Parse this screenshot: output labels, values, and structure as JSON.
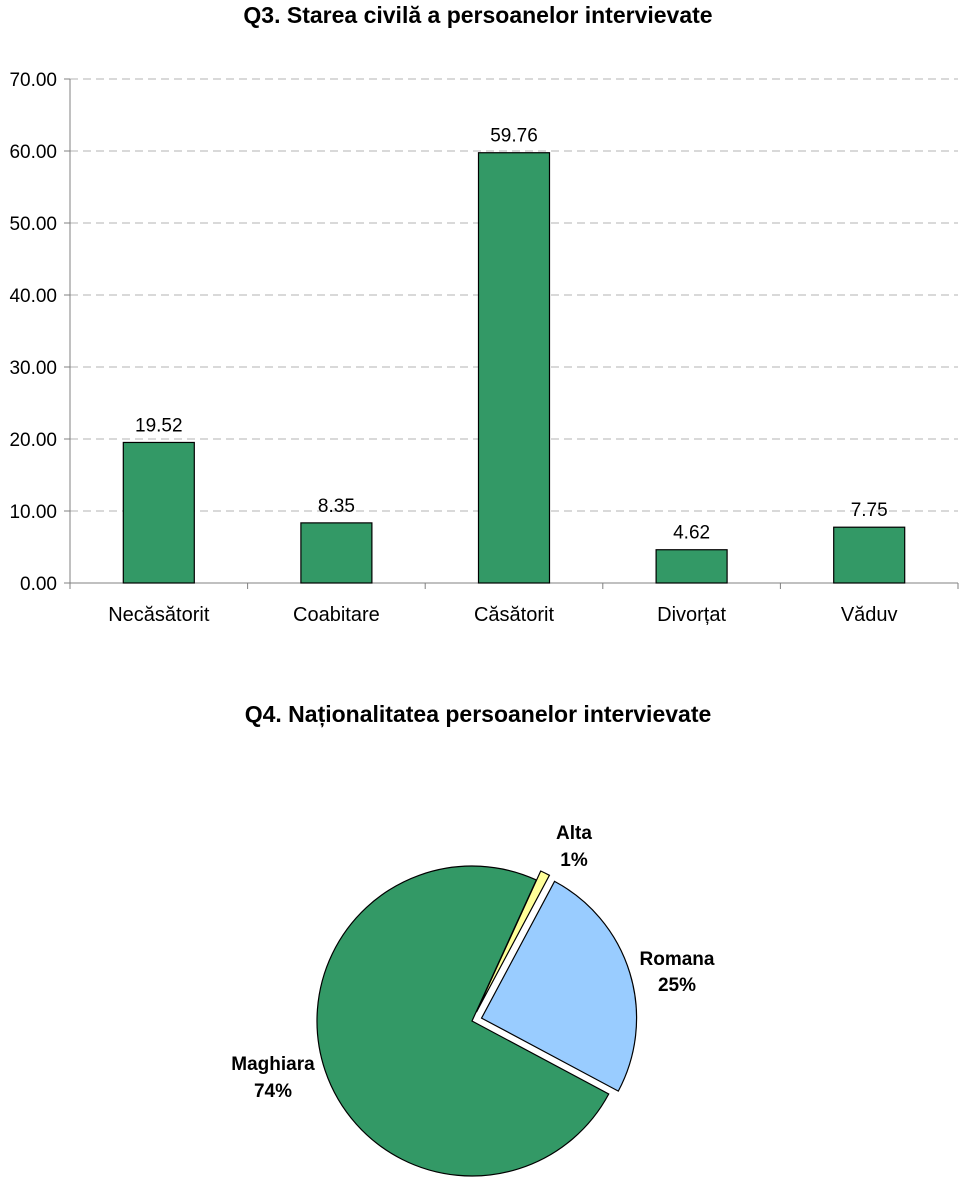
{
  "chart_data": [
    {
      "type": "bar",
      "title": "Q3. Starea civilă a persoanelor intervievate",
      "categories": [
        "Necăsătorit",
        "Coabitare",
        "Căsătorit",
        "Divorțat",
        "Văduv"
      ],
      "values": [
        19.52,
        8.35,
        59.76,
        4.62,
        7.75
      ],
      "value_labels": [
        "19.52",
        "8.35",
        "59.76",
        "4.62",
        "7.75"
      ],
      "ylim": [
        0,
        70
      ],
      "yticks": [
        "0.00",
        "10.00",
        "20.00",
        "30.00",
        "40.00",
        "50.00",
        "60.00",
        "70.00"
      ],
      "ytick_values": [
        0,
        10,
        20,
        30,
        40,
        50,
        60,
        70
      ],
      "grid": true,
      "bar_color": "#339966"
    },
    {
      "type": "pie",
      "title": "Q4. Naționalitatea persoanelor intervievate",
      "slices": [
        {
          "label": "Alta",
          "pct_label": "1%",
          "value": 1,
          "color": "#FFFF99",
          "exploded": true
        },
        {
          "label": "Romana",
          "pct_label": "25%",
          "value": 25,
          "color": "#99CCFF",
          "exploded": true
        },
        {
          "label": "Maghiara",
          "pct_label": "74%",
          "value": 74,
          "color": "#339966",
          "exploded": false
        }
      ]
    }
  ]
}
